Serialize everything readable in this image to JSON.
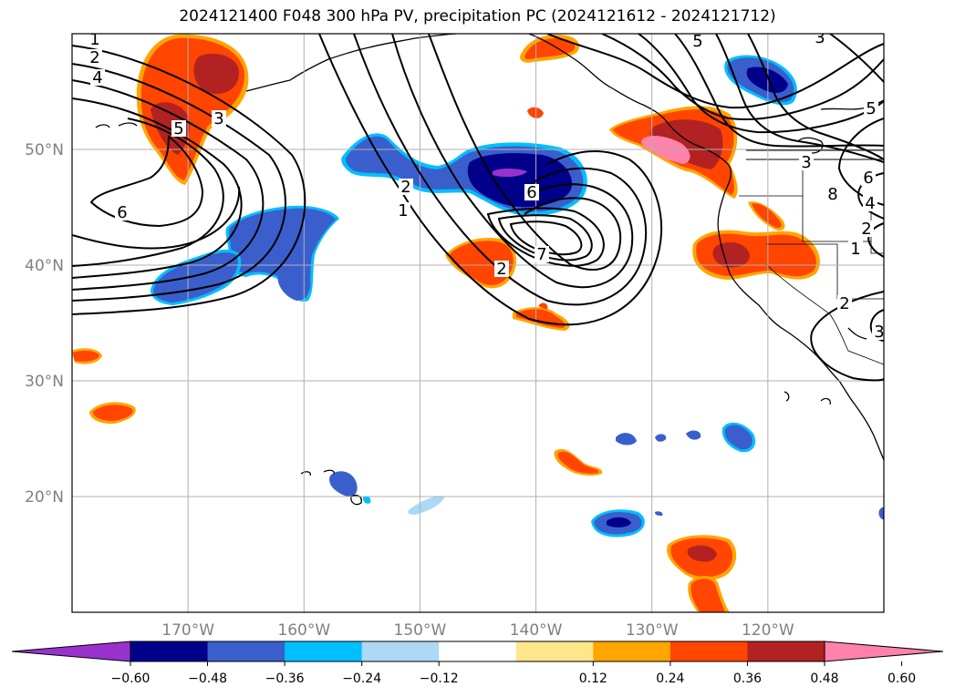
{
  "title": "2024121400 F048 300 hPa PV, precipitation PC (2024121612 - 2024121712)",
  "map": {
    "lat_labels": [
      "50°N",
      "40°N",
      "30°N",
      "20°N"
    ],
    "lon_labels": [
      "170°W",
      "160°W",
      "150°W",
      "140°W",
      "130°W",
      "120°W"
    ],
    "lat_values": [
      50,
      40,
      30,
      20
    ],
    "lon_values": [
      -170,
      -160,
      -150,
      -140,
      -130,
      -120
    ],
    "lon_range": [
      -180,
      -110
    ],
    "lat_range": [
      10,
      60
    ],
    "grid": true
  },
  "contours": {
    "color": "#000000",
    "labels": [
      {
        "text": "1"
      },
      {
        "text": "2"
      },
      {
        "text": "4"
      },
      {
        "text": "3"
      },
      {
        "text": "5"
      },
      {
        "text": "6"
      },
      {
        "text": "2"
      },
      {
        "text": "1"
      },
      {
        "text": "7"
      },
      {
        "text": "6"
      },
      {
        "text": "5"
      },
      {
        "text": "3"
      },
      {
        "text": "5"
      },
      {
        "text": "3"
      },
      {
        "text": "8"
      },
      {
        "text": "6"
      },
      {
        "text": "4"
      },
      {
        "text": "2"
      },
      {
        "text": "1"
      },
      {
        "text": "2"
      },
      {
        "text": "3"
      },
      {
        "text": "2"
      }
    ]
  },
  "colorbar": {
    "ticks": [
      "−0.60",
      "−0.48",
      "−0.36",
      "−0.24",
      "−0.12",
      "0.12",
      "0.24",
      "0.36",
      "0.48",
      "0.60"
    ],
    "colors": [
      "#9932cc",
      "#00008b",
      "#3a5fcd",
      "#00bfff",
      "#add8f6",
      "#ffffff",
      "#ffe68a",
      "#ffa500",
      "#ff4500",
      "#b22222",
      "#ff82ab"
    ]
  }
}
